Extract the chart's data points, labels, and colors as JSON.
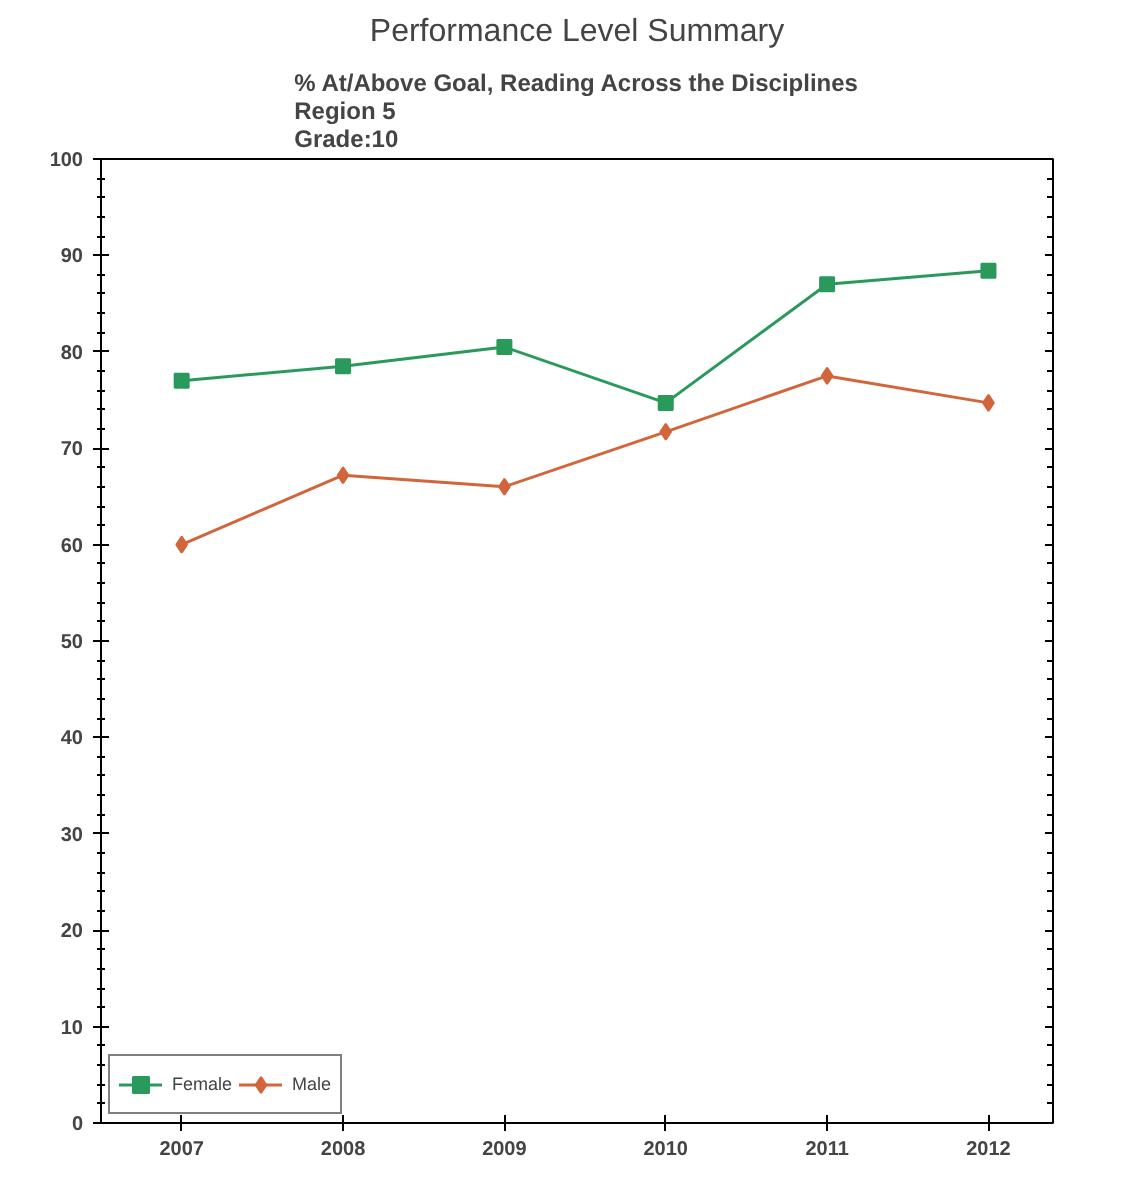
{
  "chart_data": {
    "type": "line",
    "title": "Performance Level Summary",
    "subtitle": "% At/Above Goal, Reading Across the Disciplines\nRegion 5\nGrade:10",
    "x": [
      2007,
      2008,
      2009,
      2010,
      2011,
      2012
    ],
    "series": [
      {
        "name": "Female",
        "color": "#2a9a5c",
        "marker": "square",
        "values": [
          77,
          78.5,
          80.5,
          74.7,
          87,
          88.4
        ]
      },
      {
        "name": "Male",
        "color": "#d2653c",
        "marker": "diamond",
        "values": [
          60,
          67.2,
          66,
          71.7,
          77.5,
          74.7
        ]
      }
    ],
    "xlim": [
      2006.5,
      2012.4
    ],
    "xticks": [
      2007,
      2008,
      2009,
      2010,
      2011,
      2012
    ],
    "ylim": [
      0,
      100
    ],
    "yticks": [
      0,
      10,
      20,
      30,
      40,
      50,
      60,
      70,
      80,
      90,
      100
    ],
    "grid": false,
    "legend": "bottom left",
    "line_style": "solid"
  }
}
